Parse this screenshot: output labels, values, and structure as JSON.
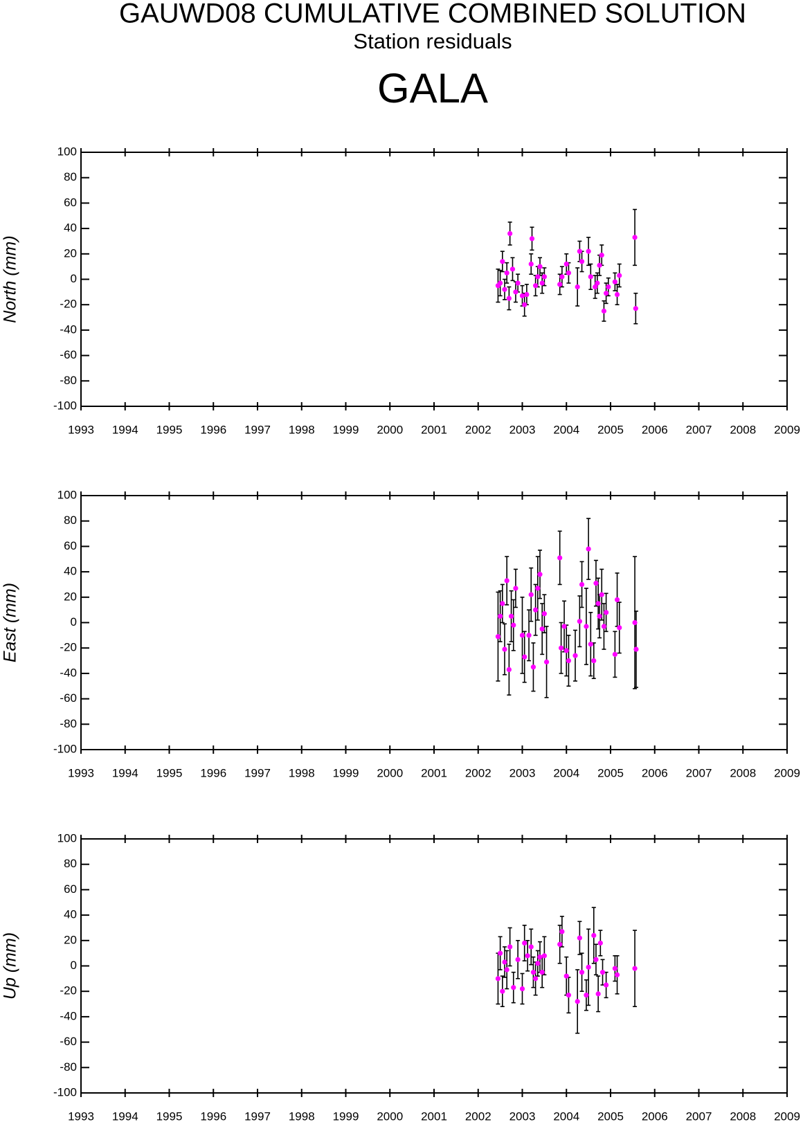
{
  "header": {
    "title": "GAUWD08 CUMULATIVE COMBINED SOLUTION",
    "subtitle": "Station residuals",
    "station": "GALA"
  },
  "chart_data": [
    {
      "type": "scatter",
      "ylabel": "North (mm)",
      "color": "#ff00ff",
      "errorcolor": "#000000",
      "xlim": [
        1993,
        2009
      ],
      "xticks": [
        1993,
        1994,
        1995,
        1996,
        1997,
        1998,
        1999,
        2000,
        2001,
        2002,
        2003,
        2004,
        2005,
        2006,
        2007,
        2008,
        2009
      ],
      "ylim": [
        -100,
        100
      ],
      "yticks": [
        -100,
        -80,
        -60,
        -40,
        -20,
        0,
        20,
        40,
        60,
        80,
        100
      ],
      "x": [
        2002.45,
        2002.5,
        2002.55,
        2002.6,
        2002.65,
        2002.7,
        2002.72,
        2002.78,
        2002.85,
        2002.9,
        2003.0,
        2003.05,
        2003.1,
        2003.2,
        2003.22,
        2003.3,
        2003.35,
        2003.4,
        2003.45,
        2003.5,
        2003.85,
        2003.9,
        2004.0,
        2004.05,
        2004.25,
        2004.3,
        2004.35,
        2004.5,
        2004.55,
        2004.65,
        2004.7,
        2004.75,
        2004.8,
        2004.85,
        2004.9,
        2004.95,
        2005.1,
        2005.15,
        2005.2,
        2005.55,
        2005.57
      ],
      "values": [
        -5,
        -3,
        14,
        -8,
        5,
        -15,
        36,
        8,
        -10,
        -3,
        -13,
        -20,
        -12,
        12,
        32,
        -5,
        2,
        10,
        -3,
        2,
        -4,
        2,
        12,
        5,
        -6,
        22,
        14,
        22,
        2,
        -6,
        -3,
        11,
        19,
        -25,
        -11,
        -6,
        -2,
        -12,
        3,
        33,
        -23
      ],
      "errors": [
        13,
        10,
        8,
        8,
        8,
        9,
        9,
        9,
        8,
        7,
        8,
        9,
        8,
        8,
        9,
        8,
        8,
        7,
        8,
        7,
        8,
        8,
        8,
        8,
        15,
        8,
        8,
        11,
        10,
        9,
        8,
        8,
        8,
        8,
        8,
        7,
        7,
        8,
        9,
        22,
        12
      ]
    },
    {
      "type": "scatter",
      "ylabel": "East (mm)",
      "color": "#ff00ff",
      "errorcolor": "#000000",
      "xlim": [
        1993,
        2009
      ],
      "xticks": [
        1993,
        1994,
        1995,
        1996,
        1997,
        1998,
        1999,
        2000,
        2001,
        2002,
        2003,
        2004,
        2005,
        2006,
        2007,
        2008,
        2009
      ],
      "ylim": [
        -100,
        100
      ],
      "yticks": [
        -100,
        -80,
        -60,
        -40,
        -20,
        0,
        20,
        40,
        60,
        80,
        100
      ],
      "x": [
        2002.45,
        2002.5,
        2002.55,
        2002.6,
        2002.65,
        2002.7,
        2002.75,
        2002.8,
        2002.85,
        2003.0,
        2003.05,
        2003.15,
        2003.2,
        2003.25,
        2003.3,
        2003.35,
        2003.4,
        2003.45,
        2003.5,
        2003.55,
        2003.85,
        2003.88,
        2003.95,
        2004.0,
        2004.05,
        2004.2,
        2004.3,
        2004.35,
        2004.45,
        2004.5,
        2004.55,
        2004.62,
        2004.67,
        2004.72,
        2004.75,
        2004.8,
        2004.85,
        2004.9,
        2005.1,
        2005.15,
        2005.2,
        2005.55,
        2005.58
      ],
      "values": [
        -11,
        5,
        15,
        -21,
        33,
        -37,
        5,
        -2,
        27,
        -10,
        -27,
        -10,
        22,
        -35,
        10,
        27,
        38,
        -5,
        7,
        -31,
        51,
        -20,
        -3,
        -22,
        -30,
        -26,
        1,
        30,
        -3,
        58,
        -17,
        -30,
        31,
        15,
        5,
        22,
        -3,
        8,
        -25,
        18,
        -4,
        0,
        -21
      ],
      "errors": [
        35,
        20,
        15,
        20,
        19,
        20,
        20,
        20,
        15,
        30,
        20,
        20,
        21,
        19,
        20,
        25,
        19,
        20,
        15,
        28,
        21,
        20,
        20,
        20,
        20,
        20,
        20,
        18,
        30,
        24,
        25,
        14,
        18,
        20,
        17,
        20,
        18,
        15,
        18,
        21,
        20,
        52,
        30
      ]
    },
    {
      "type": "scatter",
      "ylabel": "Up (mm)",
      "color": "#ff00ff",
      "errorcolor": "#000000",
      "xlim": [
        1993,
        2009
      ],
      "xticks": [
        1993,
        1994,
        1995,
        1996,
        1997,
        1998,
        1999,
        2000,
        2001,
        2002,
        2003,
        2004,
        2005,
        2006,
        2007,
        2008,
        2009
      ],
      "ylim": [
        -100,
        100
      ],
      "yticks": [
        -100,
        -80,
        -60,
        -40,
        -20,
        0,
        20,
        40,
        60,
        80,
        100
      ],
      "x": [
        2002.45,
        2002.5,
        2002.55,
        2002.6,
        2002.65,
        2002.72,
        2002.8,
        2002.9,
        2003.0,
        2003.05,
        2003.12,
        2003.2,
        2003.25,
        2003.3,
        2003.35,
        2003.4,
        2003.45,
        2003.5,
        2003.85,
        2003.9,
        2004.0,
        2004.05,
        2004.25,
        2004.3,
        2004.35,
        2004.45,
        2004.5,
        2004.62,
        2004.67,
        2004.72,
        2004.77,
        2004.82,
        2004.9,
        2005.1,
        2005.15,
        2005.55
      ],
      "values": [
        -10,
        10,
        -20,
        3,
        -3,
        15,
        -17,
        5,
        -18,
        18,
        8,
        15,
        -5,
        -10,
        2,
        7,
        -5,
        8,
        17,
        27,
        -8,
        -23,
        -28,
        22,
        -5,
        -23,
        -1,
        24,
        5,
        -22,
        18,
        -5,
        -15,
        -2,
        -7,
        -2
      ],
      "errors": [
        20,
        13,
        12,
        12,
        15,
        15,
        12,
        15,
        12,
        14,
        12,
        14,
        12,
        13,
        10,
        12,
        12,
        15,
        15,
        12,
        15,
        14,
        25,
        13,
        15,
        12,
        30,
        22,
        12,
        14,
        10,
        10,
        10,
        10,
        15,
        30
      ]
    }
  ]
}
